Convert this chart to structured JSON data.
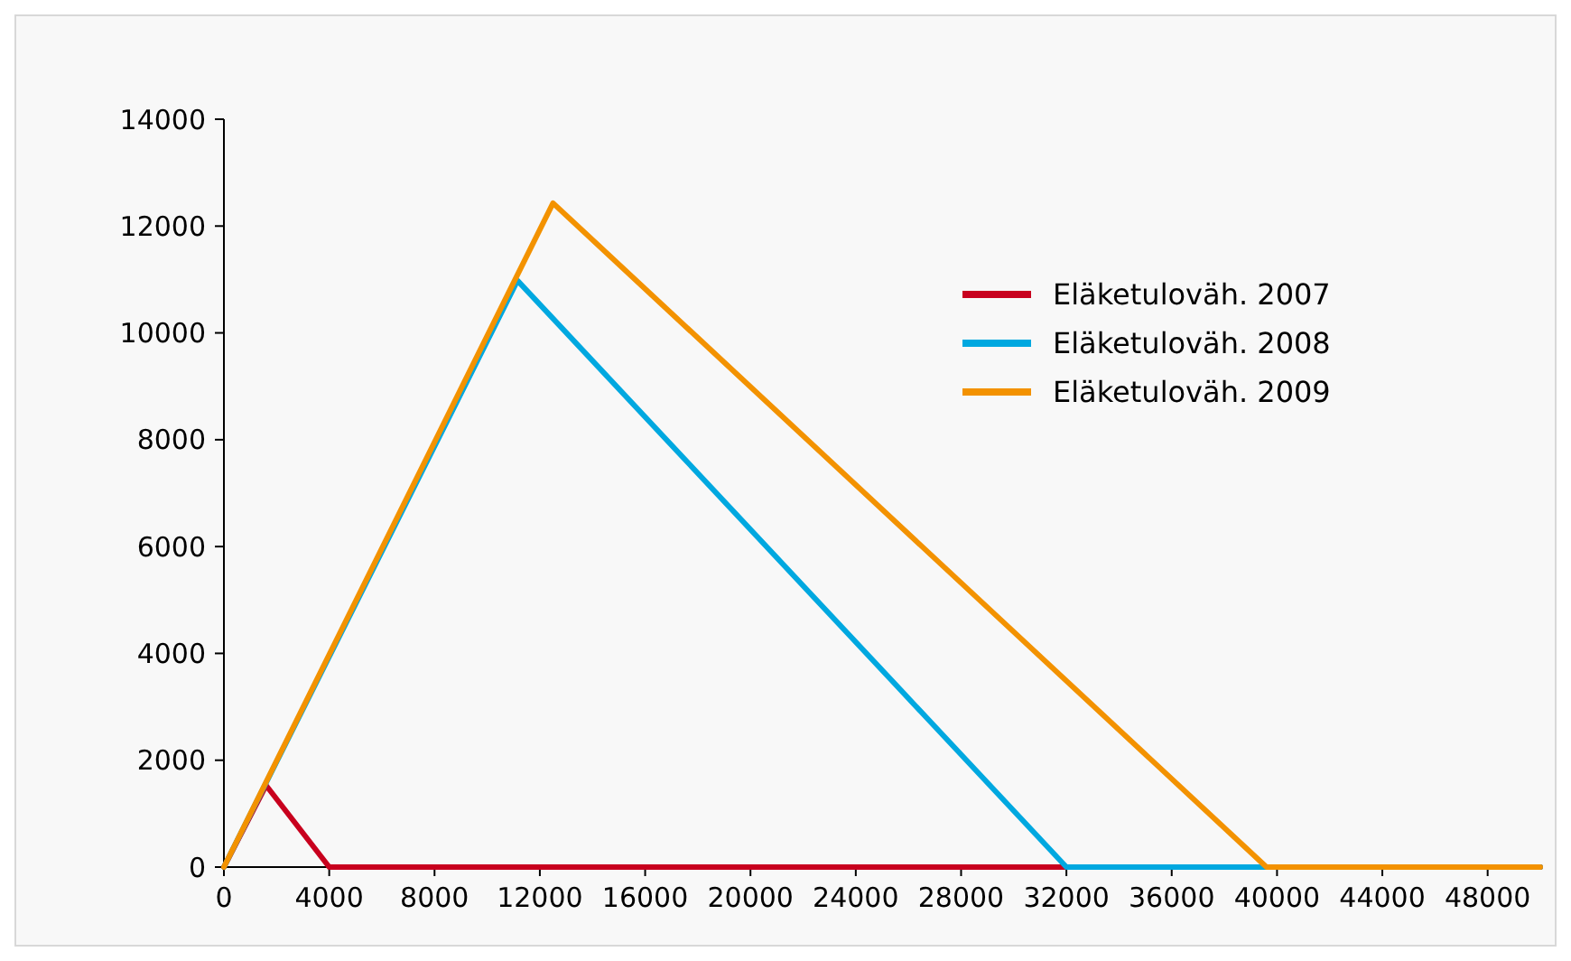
{
  "chart_data": {
    "type": "line",
    "xlim": [
      0,
      50000
    ],
    "ylim": [
      0,
      14000
    ],
    "xticks": [
      0,
      4000,
      8000,
      12000,
      16000,
      20000,
      24000,
      28000,
      32000,
      36000,
      40000,
      44000,
      48000
    ],
    "yticks": [
      0,
      2000,
      4000,
      6000,
      8000,
      10000,
      12000,
      14000
    ],
    "grid": false,
    "legend": "right",
    "marker": "none",
    "line_style": "solid",
    "series": [
      {
        "name": "Eläketuloväh. 2007",
        "color": "#c8001e",
        "x": [
          0,
          1600,
          4000,
          50000
        ],
        "values": [
          0,
          1530,
          0,
          0
        ]
      },
      {
        "name": "Eläketuloväh. 2008",
        "color": "#00a8e0",
        "x": [
          0,
          11150,
          32000,
          50000
        ],
        "values": [
          0,
          10980,
          0,
          0
        ]
      },
      {
        "name": "Eläketuloväh. 2009",
        "color": "#f39200",
        "x": [
          0,
          12500,
          39600,
          50000
        ],
        "values": [
          0,
          12430,
          0,
          0
        ]
      }
    ]
  }
}
